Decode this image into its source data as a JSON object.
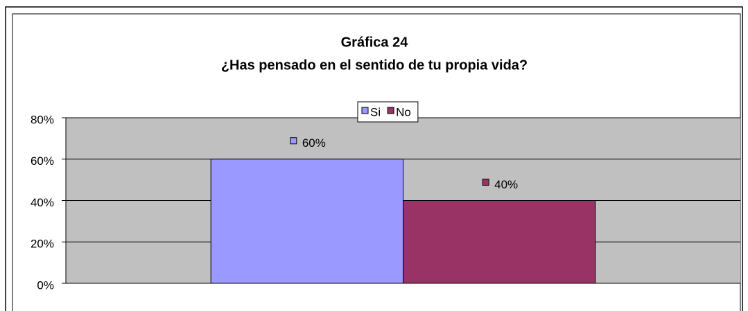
{
  "chart_data": {
    "type": "bar",
    "title": "Gráfica 24",
    "subtitle": "¿Has pensado en el sentido de tu propia vida?",
    "categories": [
      null
    ],
    "series": [
      {
        "name": "Si",
        "color": "#9999ff",
        "values": [
          60
        ],
        "value_labels": [
          "60%"
        ]
      },
      {
        "name": "No",
        "color": "#993366",
        "values": [
          40
        ],
        "value_labels": [
          "40%"
        ]
      }
    ],
    "ylim": [
      0,
      80
    ],
    "yticks": [
      {
        "value": 0,
        "label": "0%"
      },
      {
        "value": 20,
        "label": "20%"
      },
      {
        "value": 40,
        "label": "40%"
      },
      {
        "value": 60,
        "label": "60%"
      },
      {
        "value": 80,
        "label": "80%"
      }
    ],
    "grid": true,
    "legend": "top"
  }
}
